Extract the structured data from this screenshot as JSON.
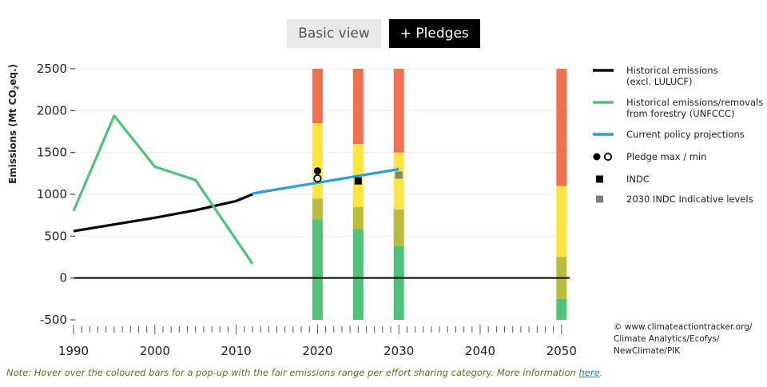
{
  "toggle": {
    "basic_label": "Basic view",
    "pledges_label": "+ Pledges"
  },
  "note": {
    "text": "Note: Hover over the coloured bars for a pop-up with the fair emissions range per effort sharing category. More information ",
    "link_text": "here",
    "end": "."
  },
  "copyright": [
    "© www.climateactiontracker.org/",
    "Climate Analytics/Ecofys/",
    "NewClimate/PIK"
  ],
  "colors": {
    "historical": "#000000",
    "forestry": "#4fc37a",
    "policy": "#2a9fd6",
    "pledge": "#000000",
    "indc": "#000000",
    "indicative": "#808080",
    "zero_line": "#000000",
    "band_red": "#f07050",
    "band_yellow": "#fde541",
    "band_olive": "#b8bd3c",
    "band_green": "#4fc37a"
  },
  "chart_data": {
    "type": "line",
    "ylabel_main": "Emissions (Mt CO",
    "ylabel_sub": "2",
    "ylabel_end": "eq.)",
    "xlim": [
      1990,
      2051
    ],
    "ylim": [
      -500,
      2500
    ],
    "x_ticks": [
      "1990",
      "2000",
      "2010",
      "2020",
      "2030",
      "2040",
      "2050"
    ],
    "y_ticks": [
      "2500",
      "2000",
      "1500",
      "1000",
      "500",
      "0",
      "-500"
    ],
    "series": [
      {
        "name": "Historical emissions",
        "name2": "(excl. LULUCF)",
        "key": "historical",
        "points": [
          [
            1990,
            560
          ],
          [
            1995,
            640
          ],
          [
            2000,
            720
          ],
          [
            2005,
            810
          ],
          [
            2010,
            920
          ],
          [
            2012,
            1000
          ]
        ]
      },
      {
        "name": "Historical emissions/removals",
        "name2": "from forestry (UNFCCC)",
        "key": "forestry",
        "points": [
          [
            1990,
            800
          ],
          [
            1995,
            1940
          ],
          [
            2000,
            1330
          ],
          [
            2005,
            1170
          ],
          [
            2012,
            170
          ]
        ]
      },
      {
        "name": "Current policy projections",
        "name2": "",
        "key": "policy",
        "points": [
          [
            2012,
            1010
          ],
          [
            2030,
            1300
          ]
        ]
      }
    ],
    "legend_markers": [
      {
        "name": "Pledge max / min",
        "key": "pledge"
      },
      {
        "name": "INDC",
        "key": "indc"
      },
      {
        "name": "2030 INDC Indicative levels",
        "key": "indicative"
      }
    ],
    "pledges": [
      {
        "x": 2020,
        "max": 1280,
        "min": 1190
      }
    ],
    "indc": [
      {
        "x": 2025,
        "y": 1160
      }
    ],
    "indicative": [
      {
        "x": 2030,
        "y": 1230
      }
    ],
    "effort_bars": [
      {
        "x": 2020,
        "bands": [
          [
            -500,
            700,
            "band_green"
          ],
          [
            700,
            950,
            "band_olive"
          ],
          [
            950,
            1850,
            "band_yellow"
          ],
          [
            1850,
            2500,
            "band_red"
          ]
        ]
      },
      {
        "x": 2025,
        "bands": [
          [
            -500,
            580,
            "band_green"
          ],
          [
            580,
            850,
            "band_olive"
          ],
          [
            850,
            1600,
            "band_yellow"
          ],
          [
            1600,
            2500,
            "band_red"
          ]
        ]
      },
      {
        "x": 2030,
        "bands": [
          [
            -500,
            380,
            "band_green"
          ],
          [
            380,
            820,
            "band_olive"
          ],
          [
            820,
            1500,
            "band_yellow"
          ],
          [
            1500,
            2500,
            "band_red"
          ]
        ]
      },
      {
        "x": 2050,
        "bands": [
          [
            -500,
            -250,
            "band_green"
          ],
          [
            -250,
            250,
            "band_olive"
          ],
          [
            250,
            1100,
            "band_yellow"
          ],
          [
            1100,
            2500,
            "band_red"
          ]
        ]
      }
    ]
  }
}
